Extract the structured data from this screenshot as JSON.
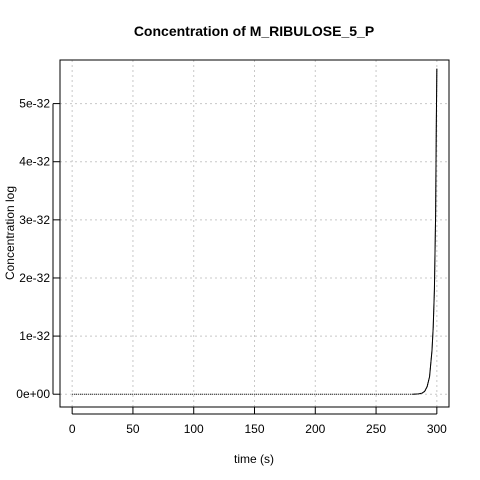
{
  "chart_data": {
    "type": "line",
    "title": "Concentration of M_RIBULOSE_5_P",
    "xlabel": "time (s)",
    "ylabel": "Concentration log",
    "xlim": [
      -10,
      310
    ],
    "ylim": [
      -2.2e-33,
      5.75e-32
    ],
    "x_ticks": [
      0,
      50,
      100,
      150,
      200,
      250,
      300
    ],
    "x_tick_labels": [
      "0",
      "50",
      "100",
      "150",
      "200",
      "250",
      "300"
    ],
    "y_ticks": [
      0,
      1e-32,
      2e-32,
      3e-32,
      4e-32,
      5e-32
    ],
    "y_tick_labels": [
      "0e+00",
      "1e-32",
      "2e-32",
      "3e-32",
      "4e-32",
      "5e-32"
    ],
    "grid": true,
    "series": [
      {
        "color": "#000000",
        "x": [
          0,
          50,
          100,
          150,
          200,
          250,
          280,
          285,
          288,
          290,
          292,
          294,
          296,
          297,
          298,
          299,
          299.5,
          300
        ],
        "y": [
          0,
          0,
          0,
          0,
          0,
          0,
          0,
          5e-35,
          2e-34,
          5e-34,
          1.3e-33,
          3e-33,
          7.5e-33,
          1.15e-32,
          1.8e-32,
          3.1e-32,
          4.5e-32,
          5.6e-32
        ]
      }
    ]
  }
}
